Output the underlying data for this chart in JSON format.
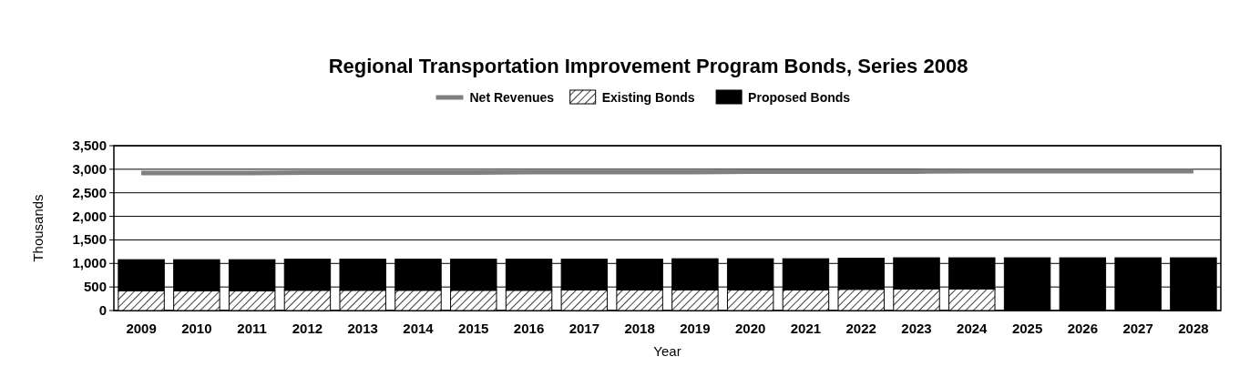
{
  "chart_data": {
    "type": "bar",
    "title": "Regional Transportation Improvement Program Bonds, Series 2008",
    "xlabel": "Year",
    "ylabel": "Thousands",
    "categories": [
      "2009",
      "2010",
      "2011",
      "2012",
      "2013",
      "2014",
      "2015",
      "2016",
      "2017",
      "2018",
      "2019",
      "2020",
      "2021",
      "2022",
      "2023",
      "2024",
      "2025",
      "2026",
      "2027",
      "2028"
    ],
    "stacked": true,
    "series": [
      {
        "name": "Net Revenues",
        "type": "line",
        "color": "#808080",
        "values": [
          2920,
          2920,
          2920,
          2930,
          2930,
          2930,
          2930,
          2940,
          2940,
          2940,
          2940,
          2950,
          2950,
          2950,
          2950,
          2960,
          2960,
          2960,
          2960,
          2960
        ]
      },
      {
        "name": "Existing Bonds",
        "color": "#000000",
        "values": [
          420,
          420,
          420,
          430,
          430,
          430,
          430,
          430,
          440,
          440,
          440,
          440,
          440,
          450,
          460,
          460,
          null,
          null,
          null,
          null
        ]
      },
      {
        "name": "Proposed Bonds",
        "color": "#000000",
        "values": [
          660,
          660,
          660,
          660,
          660,
          660,
          660,
          660,
          650,
          650,
          660,
          660,
          660,
          660,
          660,
          660,
          1120,
          1120,
          1120,
          1120
        ]
      }
    ],
    "ylim": [
      0,
      3500
    ],
    "yticks": [
      {
        "value": 0,
        "label": "0"
      },
      {
        "value": 500,
        "label": "500"
      },
      {
        "value": 1000,
        "label": "1,000"
      },
      {
        "value": 1500,
        "label": "1,500"
      },
      {
        "value": 2000,
        "label": "2,000"
      },
      {
        "value": 2500,
        "label": "2,500"
      },
      {
        "value": 3000,
        "label": "3,000"
      },
      {
        "value": 3500,
        "label": "3,500"
      }
    ],
    "grid": "y",
    "legend": "top"
  }
}
